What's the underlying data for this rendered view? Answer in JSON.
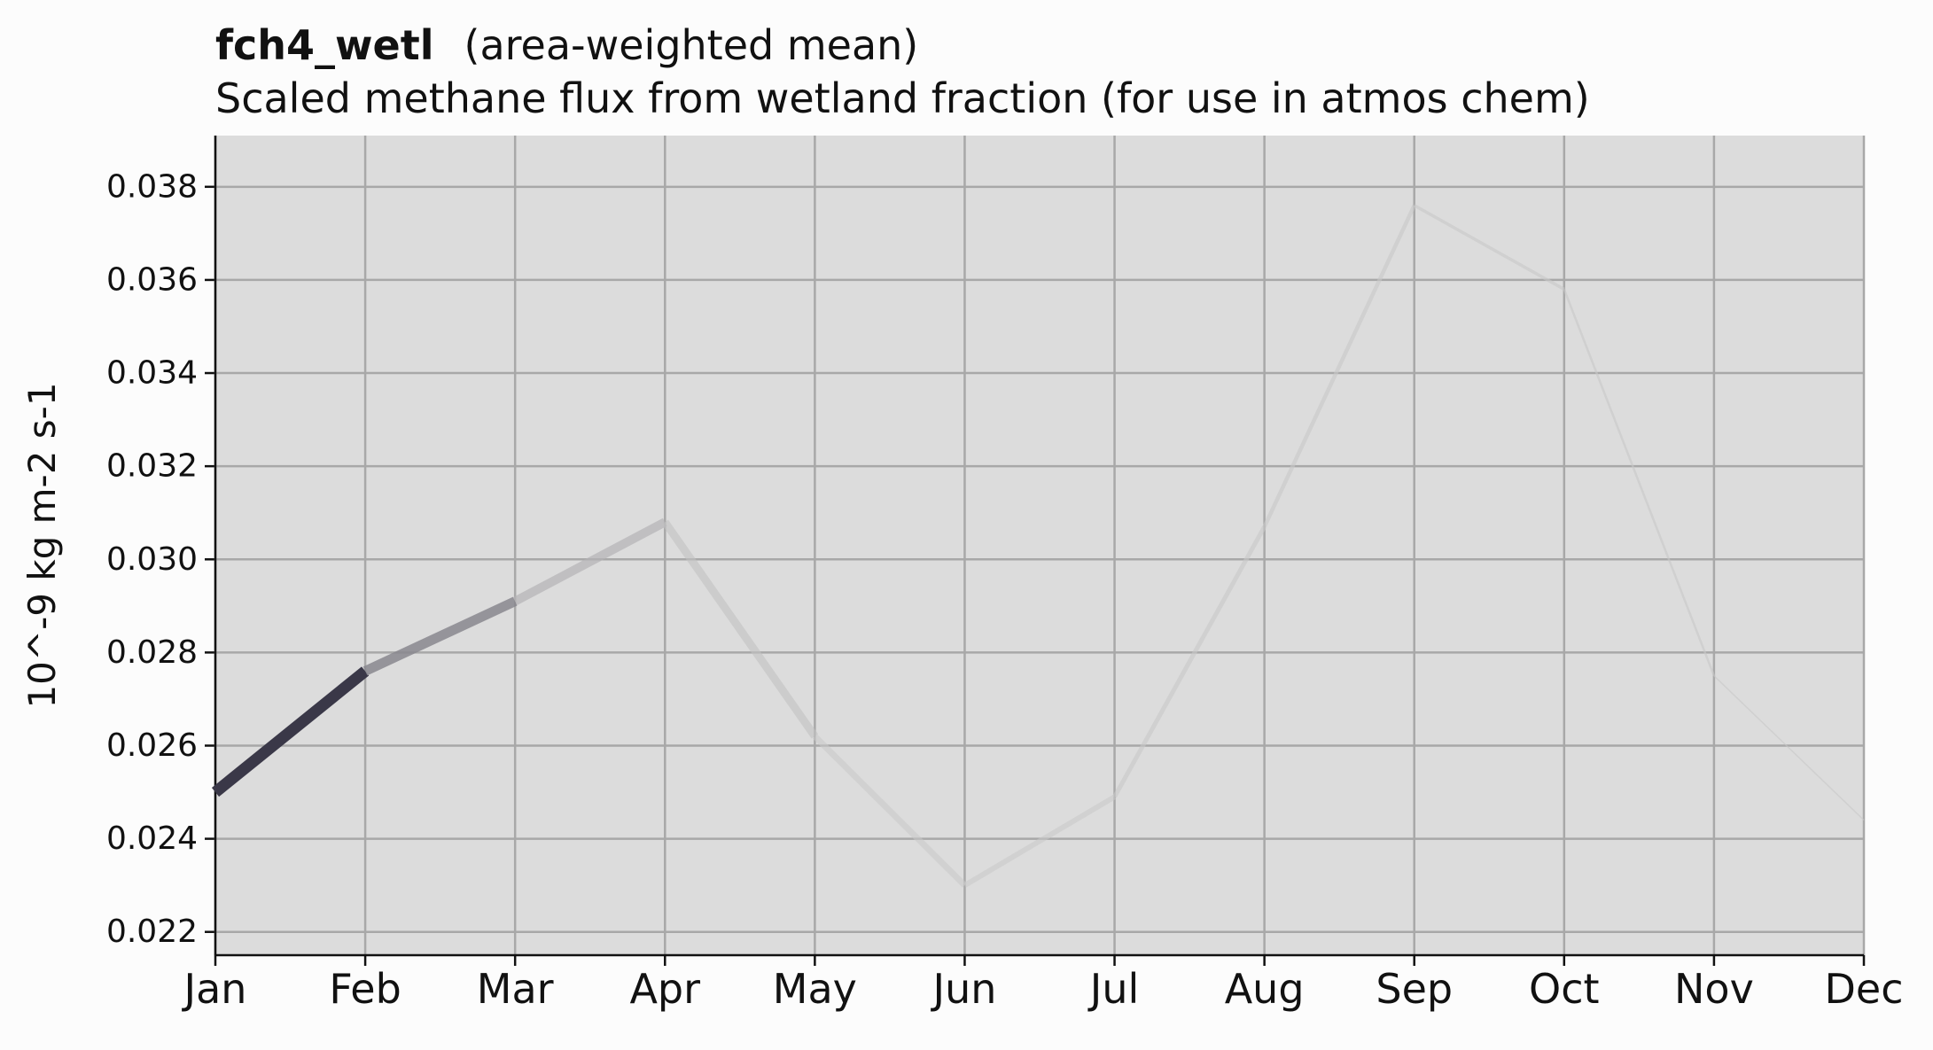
{
  "chart_data": {
    "type": "line",
    "title": "fch4_wetl",
    "title_note": "(area-weighted mean)",
    "subtitle": "Scaled methane flux from wetland fraction (for use in atmos chem)",
    "ylabel": "10^-9 kg m-2 s-1",
    "xlabel": "",
    "categories": [
      "Jan",
      "Feb",
      "Mar",
      "Apr",
      "May",
      "Jun",
      "Jul",
      "Aug",
      "Sep",
      "Oct",
      "Nov",
      "Dec"
    ],
    "values": [
      0.025,
      0.0276,
      0.0291,
      0.0308,
      0.0262,
      0.023,
      0.0249,
      0.0307,
      0.0376,
      0.0358,
      0.0275,
      0.0244
    ],
    "yticks": [
      "0.022",
      "0.024",
      "0.026",
      "0.028",
      "0.030",
      "0.032",
      "0.034",
      "0.036",
      "0.038"
    ],
    "ylim": [
      0.0215,
      0.0391
    ],
    "grid": true,
    "legend": "none",
    "colors": {
      "plot_background": "#dcdcdc",
      "figure_background": "#fcfcfc",
      "grid": "#a8a8a8",
      "line_start": "#3a3848",
      "line_end": "#c8c8c8"
    }
  }
}
